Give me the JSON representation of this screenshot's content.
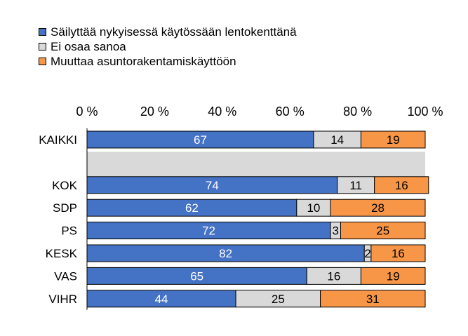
{
  "chart_data": {
    "type": "bar",
    "stacked": true,
    "orientation": "horizontal",
    "normalized_percent": true,
    "legend_position": "top-left",
    "categories": [
      "KAIKKI",
      "",
      "KOK",
      "SDP",
      "PS",
      "KESK",
      "VAS",
      "VIHR"
    ],
    "series": [
      {
        "name": "Säilyttää nykyisessä käytössään lentokenttänä",
        "color": "#4472C4",
        "label_color": "#ffffff",
        "values": [
          67,
          null,
          74,
          62,
          72,
          82,
          65,
          44
        ]
      },
      {
        "name": "Ei osaa sanoa",
        "color": "#D9D9D9",
        "label_color": "#000000",
        "values": [
          14,
          null,
          11,
          10,
          3,
          2,
          16,
          25
        ]
      },
      {
        "name": "Muuttaa asuntorakentamiskäyttöön",
        "color": "#F79646",
        "label_color": "#000000",
        "values": [
          19,
          null,
          16,
          28,
          25,
          16,
          19,
          31
        ]
      }
    ],
    "x_ticks": [
      "0 %",
      "20 %",
      "40 %",
      "60 %",
      "80 %",
      "100 %"
    ],
    "xlim": [
      0,
      100
    ],
    "separator_row_color": "#D9D9D9"
  }
}
